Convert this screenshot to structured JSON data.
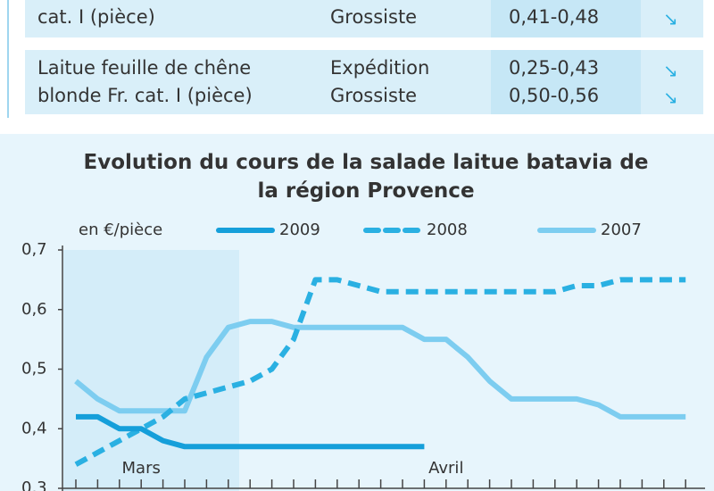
{
  "table": {
    "rows": [
      {
        "product": [
          "cat. I (pièce)"
        ],
        "stage": [
          "Grossiste"
        ],
        "price": [
          "0,41-0,48"
        ]
      },
      {
        "product": [
          "Laitue feuille de chêne",
          "blonde Fr. cat. I (pièce)"
        ],
        "stage": [
          "Expédition",
          "Grossiste"
        ],
        "price": [
          "0,25-0,43",
          "0,50-0,56"
        ]
      }
    ]
  },
  "chart_data": {
    "type": "line",
    "title": "Evolution du cours de la salade laitue batavia de la région Provence",
    "unit_label": "en €/pièce",
    "categories": [
      null,
      null,
      null,
      "Mars",
      null,
      null,
      null,
      null,
      null,
      null,
      null,
      null,
      null,
      null,
      null,
      null,
      null,
      "Avril",
      null,
      null,
      null,
      null,
      null,
      null,
      null,
      null,
      null,
      null,
      null
    ],
    "series": [
      {
        "name": "2009",
        "color": "#159fda",
        "dashed": false,
        "values": [
          0.42,
          0.42,
          0.4,
          0.4,
          0.38,
          0.37,
          0.37,
          0.37,
          0.37,
          0.37,
          0.37,
          0.37,
          0.37,
          0.37,
          0.37,
          0.37,
          0.37,
          null,
          null,
          null,
          null,
          null,
          null,
          null,
          null,
          null,
          null,
          null,
          null
        ]
      },
      {
        "name": "2008",
        "color": "#2ab0e2",
        "dashed": true,
        "values": [
          0.34,
          0.36,
          0.38,
          0.4,
          0.42,
          0.45,
          0.46,
          0.47,
          0.48,
          0.5,
          0.55,
          0.65,
          0.65,
          0.64,
          0.63,
          0.63,
          0.63,
          0.63,
          0.63,
          0.63,
          0.63,
          0.63,
          0.63,
          0.64,
          0.64,
          0.65,
          0.65,
          0.65,
          0.65
        ]
      },
      {
        "name": "2007",
        "color": "#7dcdf0",
        "dashed": false,
        "values": [
          0.48,
          0.45,
          0.43,
          0.43,
          0.43,
          0.43,
          0.52,
          0.57,
          0.58,
          0.58,
          0.57,
          0.57,
          0.57,
          0.57,
          0.57,
          0.57,
          0.55,
          0.55,
          0.52,
          0.48,
          0.45,
          0.45,
          0.45,
          0.45,
          0.44,
          0.42,
          0.42,
          0.42,
          0.42
        ]
      }
    ],
    "ylim": [
      0.3,
      0.7
    ],
    "yticks": [
      {
        "value": 0.3,
        "label": "0,3"
      },
      {
        "value": 0.4,
        "label": "0,4"
      },
      {
        "value": 0.5,
        "label": "0,5"
      },
      {
        "value": 0.6,
        "label": "0,6"
      },
      {
        "value": 0.7,
        "label": "0,7"
      }
    ]
  }
}
